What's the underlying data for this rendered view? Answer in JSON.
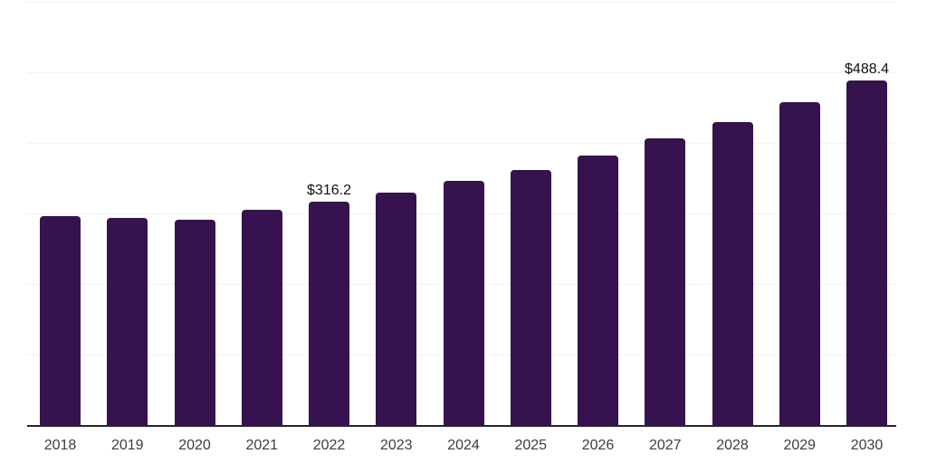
{
  "chart_data": {
    "type": "bar",
    "title": "",
    "xlabel": "",
    "ylabel": "",
    "categories": [
      "2018",
      "2019",
      "2020",
      "2021",
      "2022",
      "2023",
      "2024",
      "2025",
      "2026",
      "2027",
      "2028",
      "2029",
      "2030"
    ],
    "values": [
      296,
      293,
      291,
      305,
      316.2,
      329,
      346,
      362,
      382,
      406,
      430,
      458,
      488.4
    ],
    "data_labels": [
      {
        "category": "2022",
        "text": "$316.2"
      },
      {
        "category": "2030",
        "text": "$488.4"
      }
    ],
    "ylim": [
      0,
      600
    ],
    "grid_step": 100,
    "grid": "horizontal-light",
    "legend": "none",
    "y_tick_labels_visible": false,
    "colors": {
      "bar": "#36124e",
      "gridline": "#f2f2f2",
      "axis_line": "#262626",
      "tick_label": "#3d3d3d",
      "data_label": "#111111",
      "background": "#ffffff"
    }
  }
}
